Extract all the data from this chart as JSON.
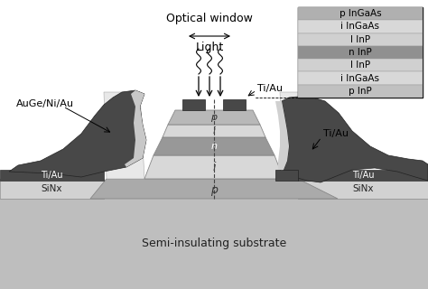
{
  "bg_color": "#ffffff",
  "substrate_color": "#bebebe",
  "sinx_color": "#d2d2d2",
  "p_base_color": "#aaaaaa",
  "i_layer_color": "#d8d8d8",
  "n_layer_color": "#989898",
  "p_top_color": "#b8b8b8",
  "white_layer": "#f0f0f0",
  "dark_metal": "#484848",
  "mid_metal": "#606060",
  "light_sinx": "#cccccc",
  "legend_labels": [
    "p InGaAs",
    "i InGaAs",
    "I InP",
    "n InP",
    "I InP",
    "i InGaAs",
    "p InP"
  ],
  "legend_colors": [
    "#b0b0b0",
    "#d8d8d8",
    "#d0d0d0",
    "#909090",
    "#d0d0d0",
    "#d8d8d8",
    "#c0c0c0"
  ],
  "annotations": {
    "optical_window": "Optical window",
    "light": "Light",
    "ti_au_top": "Ti/Au",
    "ti_au_right_mid": "Ti/Au",
    "ti_au_left": "Ti/Au",
    "ti_au_right": "Ti/Au",
    "auge": "AuGe/Ni/Au",
    "sinx_left": "SiNx",
    "sinx_right": "SiNx",
    "p_bottom": "p",
    "substrate": "Semi-insulating substrate"
  }
}
